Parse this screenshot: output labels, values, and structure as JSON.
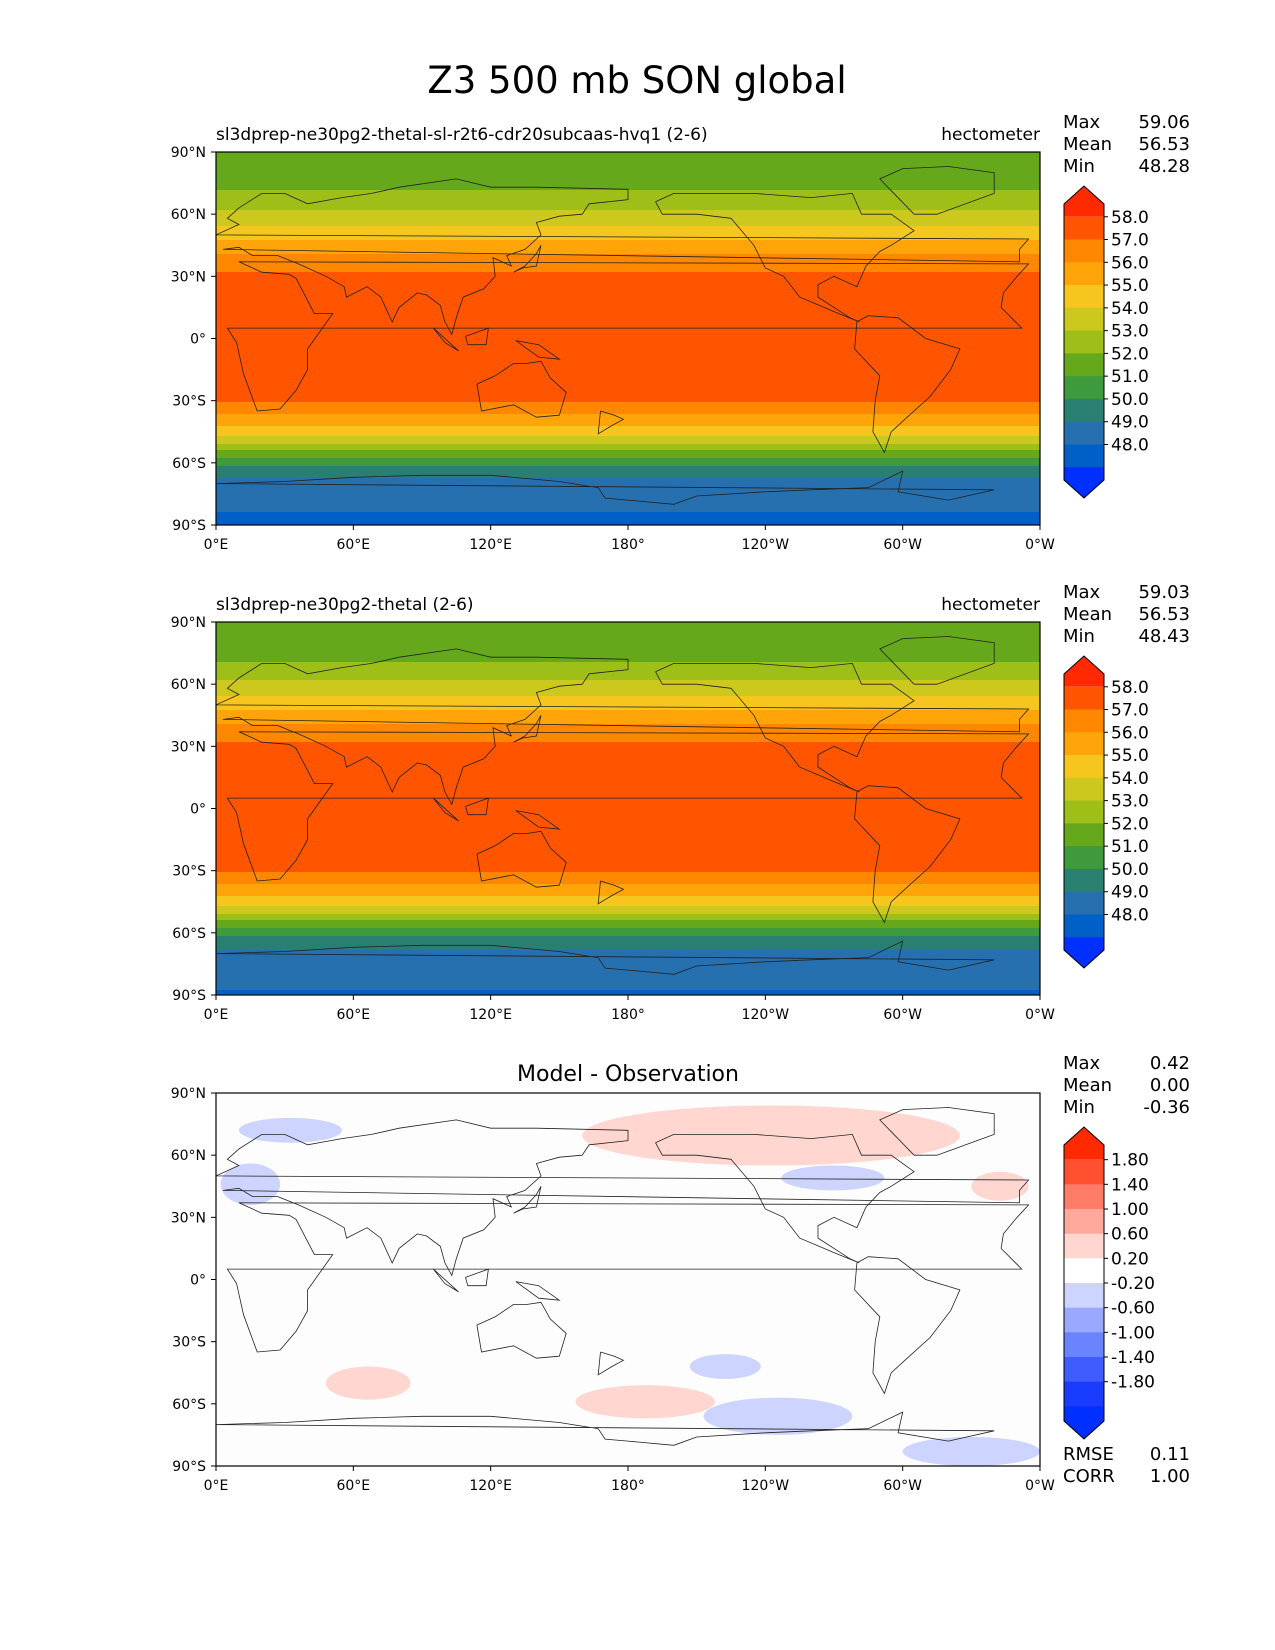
{
  "title": "Z3 500 mb SON global",
  "chart_data": [
    {
      "type": "heatmap",
      "title_left": "sl3dprep-ne30pg2-thetal-sl-r2t6-cdr20subcaas-hvq1 (2-6)",
      "units": "hectometer",
      "stats": [
        {
          "label": "Max",
          "value": "59.06"
        },
        {
          "label": "Mean",
          "value": "56.53"
        },
        {
          "label": "Min",
          "value": "48.28"
        }
      ],
      "colorbar": {
        "extend": "both",
        "tick_labels": [
          "58.0",
          "57.0",
          "56.0",
          "55.0",
          "54.0",
          "53.0",
          "52.0",
          "51.0",
          "50.0",
          "49.0",
          "48.0"
        ],
        "colors": [
          "#ff2a00",
          "#ff5400",
          "#ff8800",
          "#ffa50a",
          "#f7c61e",
          "#ccc81e",
          "#9ebf18",
          "#66a81b",
          "#3e9a3c",
          "#2a8070",
          "#2770b0",
          "#0060c8",
          "#0030ff"
        ]
      },
      "xticks": [
        "0°E",
        "60°E",
        "120°E",
        "180°",
        "120°W",
        "60°W",
        "0°W"
      ],
      "yticks": [
        "90°N",
        "60°N",
        "30°N",
        "0°",
        "30°S",
        "60°S",
        "90°S"
      ],
      "xlim": [
        0,
        360
      ],
      "ylim": [
        -90,
        90
      ],
      "lat_profile": [
        {
          "lat": 90,
          "value": 52.2
        },
        {
          "lat": 75,
          "value": 52.6
        },
        {
          "lat": 60,
          "value": 54.2
        },
        {
          "lat": 50,
          "value": 55.6
        },
        {
          "lat": 40,
          "value": 57.1
        },
        {
          "lat": 30,
          "value": 58.3
        },
        {
          "lat": 0,
          "value": 58.6
        },
        {
          "lat": -30,
          "value": 58.1
        },
        {
          "lat": -40,
          "value": 56.5
        },
        {
          "lat": -50,
          "value": 54.3
        },
        {
          "lat": -60,
          "value": 51.2
        },
        {
          "lat": -70,
          "value": 49.6
        },
        {
          "lat": -90,
          "value": 48.7
        }
      ]
    },
    {
      "type": "heatmap",
      "title_left": "sl3dprep-ne30pg2-thetal (2-6)",
      "units": "hectometer",
      "stats": [
        {
          "label": "Max",
          "value": "59.03"
        },
        {
          "label": "Mean",
          "value": "56.53"
        },
        {
          "label": "Min",
          "value": "48.43"
        }
      ],
      "colorbar": {
        "extend": "both",
        "tick_labels": [
          "58.0",
          "57.0",
          "56.0",
          "55.0",
          "54.0",
          "53.0",
          "52.0",
          "51.0",
          "50.0",
          "49.0",
          "48.0"
        ],
        "colors": [
          "#ff2a00",
          "#ff5400",
          "#ff8800",
          "#ffa50a",
          "#f7c61e",
          "#ccc81e",
          "#9ebf18",
          "#66a81b",
          "#3e9a3c",
          "#2a8070",
          "#2770b0",
          "#0060c8",
          "#0030ff"
        ]
      },
      "xticks": [
        "0°E",
        "60°E",
        "120°E",
        "180°",
        "120°W",
        "60°W",
        "0°W"
      ],
      "yticks": [
        "90°N",
        "60°N",
        "30°N",
        "0°",
        "30°S",
        "60°S",
        "90°S"
      ],
      "xlim": [
        0,
        360
      ],
      "ylim": [
        -90,
        90
      ],
      "lat_profile": [
        {
          "lat": 90,
          "value": 52.2
        },
        {
          "lat": 75,
          "value": 52.5
        },
        {
          "lat": 60,
          "value": 54.2
        },
        {
          "lat": 50,
          "value": 55.6
        },
        {
          "lat": 40,
          "value": 57.1
        },
        {
          "lat": 30,
          "value": 58.3
        },
        {
          "lat": 0,
          "value": 58.6
        },
        {
          "lat": -30,
          "value": 58.1
        },
        {
          "lat": -40,
          "value": 56.5
        },
        {
          "lat": -50,
          "value": 54.3
        },
        {
          "lat": -60,
          "value": 51.2
        },
        {
          "lat": -70,
          "value": 49.7
        },
        {
          "lat": -90,
          "value": 48.9
        }
      ]
    },
    {
      "type": "heatmap",
      "title_center": "Model - Observation",
      "stats": [
        {
          "label": "Max",
          "value": "0.42"
        },
        {
          "label": "Mean",
          "value": "0.00"
        },
        {
          "label": "Min",
          "value": "-0.36"
        }
      ],
      "colorbar": {
        "extend": "both",
        "tick_labels": [
          "1.80",
          "1.40",
          "1.00",
          "0.60",
          "0.20",
          "-0.20",
          "-0.60",
          "-1.00",
          "-1.40",
          "-1.80"
        ],
        "colors": [
          "#ff2a00",
          "#ff5030",
          "#ff7d68",
          "#ffa89b",
          "#ffd7d0",
          "#ffffff",
          "#cdd4ff",
          "#9aa8ff",
          "#6a84ff",
          "#3f5dff",
          "#1a3cff",
          "#0030ff"
        ]
      },
      "xticks": [
        "0°E",
        "60°E",
        "120°E",
        "180°",
        "120°W",
        "60°W",
        "0°W"
      ],
      "yticks": [
        "90°N",
        "60°N",
        "30°N",
        "0°",
        "30°S",
        "60°S",
        "90°S"
      ],
      "xlim": [
        0,
        360
      ],
      "ylim": [
        -90,
        90
      ],
      "anomalies": [
        {
          "lon_min": 160,
          "lon_max": 325,
          "lat_min": 55,
          "lat_max": 84,
          "sign": "positive"
        },
        {
          "lon_min": 330,
          "lon_max": 355,
          "lat_min": 38,
          "lat_max": 52,
          "sign": "positive"
        },
        {
          "lon_min": 48,
          "lon_max": 85,
          "lat_min": -58,
          "lat_max": -42,
          "sign": "positive"
        },
        {
          "lon_min": 157,
          "lon_max": 218,
          "lat_min": -67,
          "lat_max": -51,
          "sign": "positive"
        },
        {
          "lon_min": 10,
          "lon_max": 55,
          "lat_min": 66,
          "lat_max": 78,
          "sign": "negative"
        },
        {
          "lon_min": 2,
          "lon_max": 28,
          "lat_min": 36,
          "lat_max": 56,
          "sign": "negative"
        },
        {
          "lon_min": 247,
          "lon_max": 292,
          "lat_min": 43,
          "lat_max": 55,
          "sign": "negative"
        },
        {
          "lon_min": 207,
          "lon_max": 238,
          "lat_min": -48,
          "lat_max": -36,
          "sign": "negative"
        },
        {
          "lon_min": 213,
          "lon_max": 278,
          "lat_min": -75,
          "lat_max": -57,
          "sign": "negative"
        },
        {
          "lon_min": 300,
          "lon_max": 360,
          "lat_min": -90,
          "lat_max": -76,
          "sign": "negative"
        }
      ],
      "rmse": {
        "label": "RMSE",
        "value": "0.11"
      },
      "corr": {
        "label": "CORR",
        "value": "1.00"
      }
    }
  ]
}
